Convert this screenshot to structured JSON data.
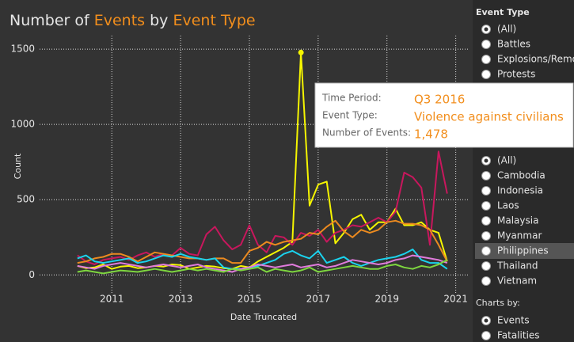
{
  "chart_data": {
    "type": "line",
    "title_parts": [
      "Number of",
      "Events",
      "by",
      "Event Type"
    ],
    "xlabel": "Date Truncated",
    "ylabel": "Count",
    "x": [
      2010,
      2010.25,
      2010.5,
      2010.75,
      2011,
      2011.25,
      2011.5,
      2011.75,
      2012,
      2012.25,
      2012.5,
      2012.75,
      2013,
      2013.25,
      2013.5,
      2013.75,
      2014,
      2014.25,
      2014.5,
      2014.75,
      2015,
      2015.25,
      2015.5,
      2015.75,
      2016,
      2016.25,
      2016.5,
      2016.75,
      2017,
      2017.25,
      2017.5,
      2017.75,
      2018,
      2018.25,
      2018.5,
      2018.75,
      2019,
      2019.25,
      2019.5,
      2019.75,
      2020,
      2020.25,
      2020.5,
      2020.75
    ],
    "xlim": [
      2008.9,
      2021.4
    ],
    "xticks": [
      2011,
      2013,
      2015,
      2017,
      2019,
      2021
    ],
    "ylim": [
      -130,
      1590
    ],
    "yticks": [
      0,
      500,
      1000,
      1500
    ],
    "grid": true,
    "series": [
      {
        "color": "#f5f500",
        "values": [
          60,
          45,
          50,
          70,
          40,
          55,
          60,
          45,
          50,
          60,
          55,
          70,
          65,
          40,
          50,
          60,
          55,
          45,
          40,
          60,
          50,
          90,
          120,
          150,
          180,
          220,
          1478,
          460,
          600,
          620,
          210,
          280,
          370,
          400,
          300,
          350,
          350,
          440,
          330,
          330,
          350,
          300,
          280,
          90
        ]
      },
      {
        "color": "#c8175d",
        "values": [
          130,
          90,
          70,
          100,
          110,
          120,
          100,
          130,
          150,
          120,
          140,
          130,
          180,
          140,
          130,
          270,
          320,
          230,
          170,
          200,
          330,
          200,
          150,
          260,
          250,
          200,
          280,
          260,
          300,
          220,
          280,
          300,
          330,
          320,
          350,
          380,
          350,
          420,
          680,
          650,
          580,
          200,
          820,
          540
        ]
      },
      {
        "color": "#ec8a1f",
        "values": [
          80,
          90,
          110,
          120,
          140,
          140,
          120,
          90,
          120,
          150,
          140,
          130,
          120,
          110,
          110,
          100,
          110,
          110,
          80,
          80,
          160,
          180,
          220,
          200,
          220,
          230,
          240,
          280,
          270,
          320,
          360,
          290,
          250,
          300,
          280,
          300,
          350,
          360,
          340,
          340,
          330,
          300,
          200,
          90
        ]
      },
      {
        "color": "#1ad3ee",
        "values": [
          110,
          130,
          90,
          80,
          90,
          100,
          110,
          80,
          90,
          110,
          130,
          120,
          140,
          120,
          110,
          100,
          110,
          50,
          40,
          40,
          50,
          60,
          80,
          100,
          140,
          160,
          130,
          110,
          160,
          80,
          100,
          120,
          80,
          60,
          80,
          100,
          110,
          120,
          140,
          170,
          100,
          80,
          80,
          40
        ]
      },
      {
        "color": "#e07bdc",
        "values": [
          60,
          50,
          40,
          60,
          70,
          80,
          70,
          60,
          50,
          60,
          70,
          60,
          50,
          60,
          70,
          50,
          40,
          30,
          20,
          40,
          50,
          70,
          60,
          50,
          60,
          70,
          50,
          60,
          70,
          50,
          60,
          80,
          100,
          90,
          80,
          70,
          80,
          100,
          110,
          130,
          120,
          110,
          100,
          80
        ]
      },
      {
        "color": "#7ed63f",
        "values": [
          20,
          30,
          20,
          10,
          20,
          30,
          25,
          20,
          30,
          40,
          30,
          20,
          30,
          40,
          30,
          40,
          30,
          20,
          40,
          30,
          40,
          50,
          20,
          40,
          30,
          20,
          30,
          50,
          20,
          30,
          40,
          50,
          60,
          50,
          40,
          40,
          60,
          70,
          50,
          40,
          60,
          50,
          70,
          100
        ]
      }
    ]
  },
  "tooltip": {
    "rows": [
      [
        "Time Period:",
        "Q3 2016"
      ],
      [
        "Event Type:",
        "Violence against civilians"
      ],
      [
        "Number of Events:",
        "1,478"
      ]
    ]
  },
  "panel": {
    "event_type_title": "Event Type",
    "event_types": [
      "(All)",
      "Battles",
      "Explosions/Remo",
      "Protests"
    ],
    "countries": [
      "(All)",
      "Cambodia",
      "Indonesia",
      "Laos",
      "Malaysia",
      "Myanmar",
      "Philippines",
      "Thailand",
      "Vietnam"
    ],
    "charts_by_title": "Charts by:",
    "charts_by": [
      "Events",
      "Fatalities"
    ]
  }
}
